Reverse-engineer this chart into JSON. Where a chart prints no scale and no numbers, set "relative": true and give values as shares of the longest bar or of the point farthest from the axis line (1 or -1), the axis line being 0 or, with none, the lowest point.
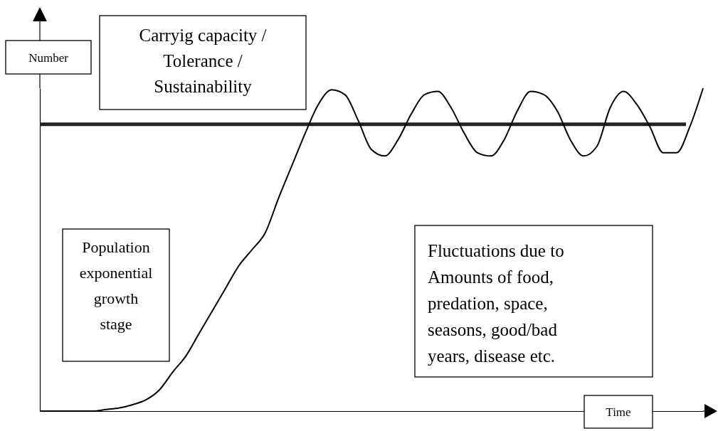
{
  "chart_data": {
    "type": "line",
    "relative": true,
    "xlabel": "Time",
    "ylabel": "Number",
    "categories": [
      null,
      null,
      null,
      null,
      null,
      null,
      null,
      null,
      null,
      null,
      null,
      null,
      null,
      null,
      null,
      null,
      null,
      null,
      null,
      null,
      null,
      null,
      null,
      null,
      null,
      null,
      null,
      null,
      null,
      null,
      null,
      null,
      null,
      null,
      null,
      null,
      null,
      null,
      null,
      null,
      null,
      null,
      null,
      null,
      null,
      null,
      null,
      null,
      null,
      null,
      null
    ],
    "series": [
      {
        "color": "#000000",
        "values": [
          0,
          0,
          0,
          0,
          0,
          0.005,
          0.01,
          0.02,
          0.035,
          0.065,
          0.12,
          0.17,
          0.24,
          0.31,
          0.38,
          0.45,
          0.5,
          0.553,
          0.66,
          0.76,
          0.86,
          0.95,
          0.995,
          0.98,
          0.9,
          0.81,
          0.79,
          0.84,
          0.92,
          0.98,
          0.99,
          0.94,
          0.86,
          0.8,
          0.79,
          0.84,
          0.93,
          0.99,
          0.98,
          0.93,
          0.84,
          0.79,
          0.82,
          0.94,
          0.99,
          0.95,
          0.88,
          0.8,
          0.8,
          0.88,
          1
        ]
      }
    ],
    "ref_lines": [
      {
        "axis": "y",
        "value": 0.888,
        "label": "Carryig capacity /\nTolerance /\nSustainability",
        "color": "#222222"
      }
    ],
    "annotations": [
      "Population\nexponential\ngrowth\nstage",
      "Fluctuations due to\nAmounts of food,\npredation, space,\nseasons, good/bad\nyears, disease etc."
    ],
    "marker": "none",
    "line_style": "solid",
    "grid": false
  }
}
